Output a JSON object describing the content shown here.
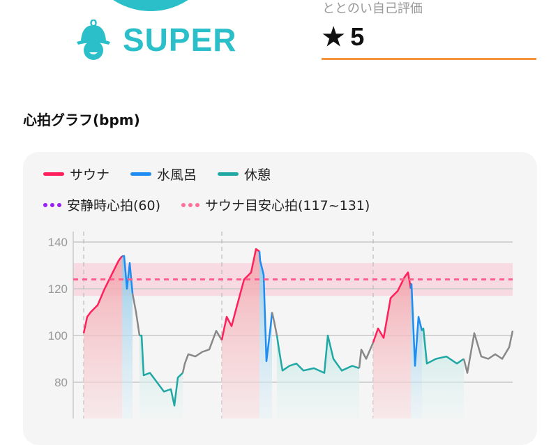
{
  "header": {
    "level_label": "SUPER",
    "level_icon": "sauna-hat-person-icon",
    "rating_label": "ととのい自己評価",
    "rating_icon": "star-icon",
    "rating_value": "5",
    "accent_color": "#2bbfca",
    "underline_color": "#f5923e"
  },
  "section_title": "心拍グラフ(bpm)",
  "legend": {
    "sauna": "サウナ",
    "water": "水風呂",
    "rest": "休憩",
    "resting_hr": "安静時心拍(60)",
    "target_hr": "サウナ目安心拍(117~131)"
  },
  "chart_data": {
    "type": "line",
    "title": "心拍グラフ(bpm)",
    "ylabel": "bpm",
    "ylim": [
      64,
      145
    ],
    "yticks": [
      "140",
      "120",
      "100",
      "80"
    ],
    "grid": true,
    "legend_position": "top",
    "colors": {
      "sauna": "#ff1f5a",
      "water": "#1e8cf0",
      "rest": "#20a8a4",
      "other": "#888888",
      "resting": "#9a1ff0",
      "target": "#ff5f8f"
    },
    "resting_hr": 60,
    "target_band": [
      117,
      131
    ],
    "target_line": 124,
    "set_starts": [
      3,
      42.6,
      86
    ],
    "segments": [
      {
        "kind": "sauna",
        "points": [
          [
            3,
            101
          ],
          [
            4,
            108
          ],
          [
            5,
            110
          ],
          [
            7,
            113
          ],
          [
            9,
            120
          ],
          [
            11,
            126
          ],
          [
            13,
            132
          ],
          [
            14,
            134
          ]
        ]
      },
      {
        "kind": "water",
        "points": [
          [
            14,
            134
          ],
          [
            14.6,
            134
          ],
          [
            15.4,
            120
          ],
          [
            16.2,
            131
          ],
          [
            17,
            118
          ]
        ]
      },
      {
        "kind": "other",
        "points": [
          [
            17,
            118
          ],
          [
            18,
            110
          ],
          [
            19,
            100
          ]
        ]
      },
      {
        "kind": "rest",
        "points": [
          [
            19,
            100
          ],
          [
            19.6,
            100
          ],
          [
            20.2,
            83
          ],
          [
            22,
            84
          ],
          [
            24,
            80
          ],
          [
            26,
            76
          ],
          [
            28,
            77
          ],
          [
            29,
            70
          ],
          [
            30,
            82
          ],
          [
            31.4,
            84
          ]
        ]
      },
      {
        "kind": "other",
        "points": [
          [
            31.4,
            84
          ],
          [
            32,
            88
          ],
          [
            33,
            92
          ],
          [
            35,
            91
          ],
          [
            37,
            93
          ],
          [
            39,
            94
          ],
          [
            41,
            102
          ],
          [
            42.6,
            98
          ]
        ]
      },
      {
        "kind": "sauna",
        "points": [
          [
            42.6,
            98
          ],
          [
            43,
            101
          ],
          [
            44,
            108
          ],
          [
            45.4,
            104
          ],
          [
            47,
            113
          ],
          [
            49,
            124
          ],
          [
            51,
            127
          ],
          [
            52.4,
            137
          ],
          [
            53.4,
            136
          ]
        ]
      },
      {
        "kind": "water",
        "points": [
          [
            53.4,
            136
          ],
          [
            53.6,
            132
          ],
          [
            54.6,
            126
          ],
          [
            55.4,
            89
          ],
          [
            56.6,
            104
          ],
          [
            57,
            110
          ]
        ]
      },
      {
        "kind": "other",
        "points": [
          [
            57,
            110
          ],
          [
            57.6,
            106
          ],
          [
            58.4,
            100
          ]
        ]
      },
      {
        "kind": "rest",
        "points": [
          [
            58.4,
            100
          ],
          [
            59,
            94
          ],
          [
            60,
            85
          ],
          [
            62,
            87
          ],
          [
            64,
            88
          ],
          [
            66,
            85
          ],
          [
            69,
            86
          ],
          [
            72,
            84
          ],
          [
            73,
            100
          ],
          [
            74.6,
            90
          ],
          [
            77,
            85
          ],
          [
            80,
            87
          ],
          [
            82,
            86
          ]
        ]
      },
      {
        "kind": "other",
        "points": [
          [
            82,
            86
          ],
          [
            82.6,
            94
          ],
          [
            84,
            90
          ],
          [
            86,
            97
          ]
        ]
      },
      {
        "kind": "sauna",
        "points": [
          [
            86,
            97
          ],
          [
            87.4,
            103
          ],
          [
            89,
            99
          ],
          [
            91,
            116
          ],
          [
            93,
            119
          ],
          [
            95,
            125
          ],
          [
            96,
            127
          ],
          [
            96.8,
            120
          ]
        ]
      },
      {
        "kind": "water",
        "points": [
          [
            96.8,
            120
          ],
          [
            97,
            122
          ],
          [
            98,
            87
          ],
          [
            99,
            108
          ],
          [
            100,
            102
          ]
        ]
      },
      {
        "kind": "rest",
        "points": [
          [
            100,
            102
          ],
          [
            100.4,
            103
          ],
          [
            101.4,
            88
          ],
          [
            104,
            90
          ],
          [
            107,
            91
          ],
          [
            110,
            88
          ],
          [
            112,
            90
          ]
        ]
      },
      {
        "kind": "other",
        "points": [
          [
            112,
            90
          ],
          [
            113,
            84
          ],
          [
            115,
            101
          ],
          [
            117,
            91
          ],
          [
            119,
            90
          ],
          [
            121,
            92
          ],
          [
            123,
            90
          ],
          [
            125,
            95
          ],
          [
            126,
            102
          ]
        ]
      }
    ]
  }
}
